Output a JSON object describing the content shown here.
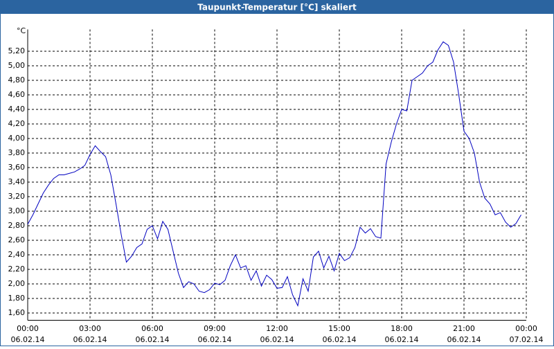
{
  "chart_data": {
    "type": "line",
    "title": "Taupunkt-Temperatur [°C] skaliert",
    "y_label": "°C",
    "x": [
      0,
      0.25,
      0.5,
      0.75,
      1,
      1.25,
      1.5,
      1.75,
      2,
      2.25,
      2.5,
      2.75,
      3,
      3.25,
      3.5,
      3.75,
      4,
      4.25,
      4.5,
      4.75,
      5,
      5.25,
      5.5,
      5.75,
      6,
      6.25,
      6.5,
      6.75,
      7,
      7.25,
      7.5,
      7.75,
      8,
      8.25,
      8.5,
      8.75,
      9,
      9.25,
      9.5,
      9.75,
      10,
      10.25,
      10.5,
      10.75,
      11,
      11.25,
      11.5,
      11.75,
      12,
      12.25,
      12.5,
      12.75,
      13,
      13.25,
      13.5,
      13.75,
      14,
      14.25,
      14.5,
      14.75,
      15,
      15.25,
      15.5,
      15.75,
      16,
      16.25,
      16.5,
      16.75,
      17,
      17.25,
      17.5,
      17.75,
      18,
      18.25,
      18.5,
      18.75,
      19,
      19.25,
      19.5,
      19.75,
      20,
      20.25,
      20.5,
      20.75,
      21,
      21.25,
      21.5,
      21.75,
      22,
      22.25,
      22.5,
      22.75,
      23,
      23.25,
      23.5,
      23.75
    ],
    "series": [
      {
        "name": "Taupunkt",
        "color": "#0000c0",
        "values": [
          2.82,
          2.95,
          3.1,
          3.25,
          3.36,
          3.45,
          3.5,
          3.5,
          3.52,
          3.54,
          3.58,
          3.63,
          3.78,
          3.9,
          3.82,
          3.75,
          3.5,
          3.1,
          2.68,
          2.3,
          2.38,
          2.5,
          2.55,
          2.75,
          2.8,
          2.62,
          2.86,
          2.75,
          2.45,
          2.15,
          1.95,
          2.03,
          2.0,
          1.9,
          1.88,
          1.92,
          2.01,
          1.99,
          2.05,
          2.25,
          2.4,
          2.22,
          2.25,
          2.05,
          2.18,
          1.97,
          2.12,
          2.06,
          1.94,
          1.95,
          2.1,
          1.85,
          1.7,
          2.07,
          1.9,
          2.37,
          2.45,
          2.22,
          2.38,
          2.18,
          2.42,
          2.32,
          2.36,
          2.5,
          2.78,
          2.7,
          2.76,
          2.65,
          2.63,
          3.65,
          3.95,
          4.2,
          4.4,
          4.38,
          4.8,
          4.85,
          4.9,
          5.0,
          5.05,
          5.22,
          5.33,
          5.28,
          5.05,
          4.6,
          4.1,
          4.0,
          3.8,
          3.4,
          3.18,
          3.1,
          2.95,
          2.98,
          2.85,
          2.78,
          2.83,
          2.95
        ]
      }
    ],
    "xlim": [
      0,
      24
    ],
    "xticks": [
      {
        "value": 0,
        "label": "00:00"
      },
      {
        "value": 3,
        "label": "03:00"
      },
      {
        "value": 6,
        "label": "06:00"
      },
      {
        "value": 9,
        "label": "09:00"
      },
      {
        "value": 12,
        "label": "12:00"
      },
      {
        "value": 15,
        "label": "15:00"
      },
      {
        "value": 18,
        "label": "18:00"
      },
      {
        "value": 21,
        "label": "21:00"
      },
      {
        "value": 24,
        "label": "00:00"
      }
    ],
    "xtick_dates": [
      "06.02.14",
      "06.02.14",
      "06.02.14",
      "06.02.14",
      "06.02.14",
      "06.02.14",
      "06.02.14",
      "06.02.14",
      "07.02.14"
    ],
    "ylim": [
      1.5,
      5.5
    ],
    "yticks": [
      {
        "value": 1.6,
        "label": "1,60"
      },
      {
        "value": 1.8,
        "label": "1,80"
      },
      {
        "value": 2.0,
        "label": "2,00"
      },
      {
        "value": 2.2,
        "label": "2,20"
      },
      {
        "value": 2.4,
        "label": "2,40"
      },
      {
        "value": 2.6,
        "label": "2,60"
      },
      {
        "value": 2.8,
        "label": "2,80"
      },
      {
        "value": 3.0,
        "label": "3,00"
      },
      {
        "value": 3.2,
        "label": "3,20"
      },
      {
        "value": 3.4,
        "label": "3,40"
      },
      {
        "value": 3.6,
        "label": "3,60"
      },
      {
        "value": 3.8,
        "label": "3,80"
      },
      {
        "value": 4.0,
        "label": "4,00"
      },
      {
        "value": 4.2,
        "label": "4,20"
      },
      {
        "value": 4.4,
        "label": "4,40"
      },
      {
        "value": 4.6,
        "label": "4,60"
      },
      {
        "value": 4.8,
        "label": "4,80"
      },
      {
        "value": 5.0,
        "label": "5,00"
      },
      {
        "value": 5.2,
        "label": "5,20"
      }
    ],
    "grid": true
  }
}
